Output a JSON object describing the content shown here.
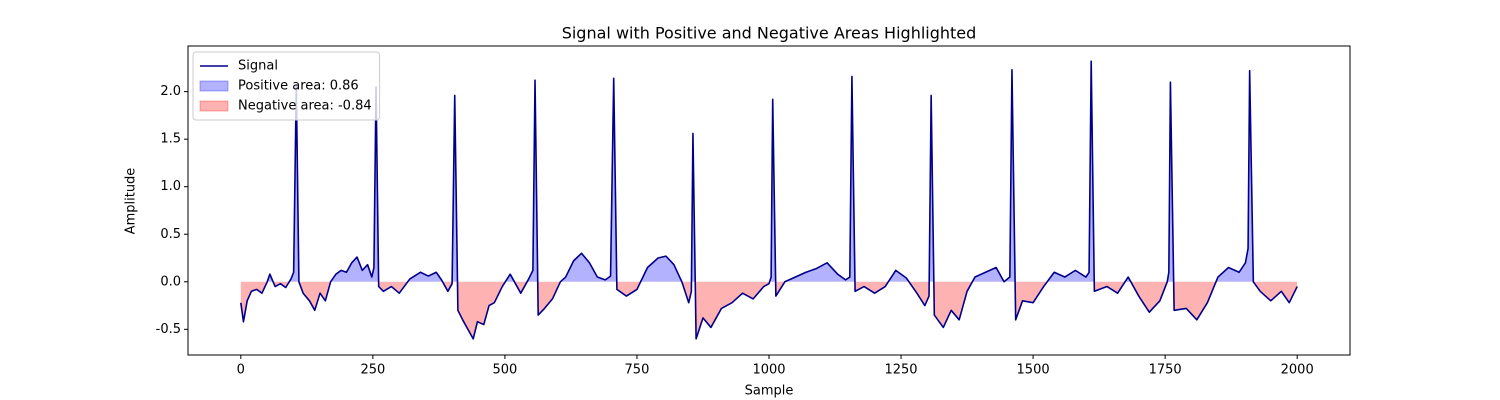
{
  "chart_data": {
    "type": "line",
    "title": "Signal with Positive and Negative Areas Highlighted",
    "x_label": "Sample",
    "y_label": "Amplitude",
    "xlim": [
      -100,
      2100
    ],
    "ylim": [
      -0.77,
      2.48
    ],
    "xticks": [
      0,
      250,
      500,
      750,
      1000,
      1250,
      1500,
      1750,
      2000
    ],
    "yticks": [
      -0.5,
      {
        "value": 0,
        "label": "0.0"
      },
      0.5,
      {
        "value": 1,
        "label": "1.0"
      },
      1.5,
      {
        "value": 2,
        "label": "2.0"
      }
    ],
    "legend": "upper left",
    "series": [
      {
        "name": "Signal",
        "color": "#00008b",
        "x": [
          0,
          5,
          12,
          20,
          30,
          40,
          50,
          55,
          65,
          75,
          85,
          95,
          100,
          105,
          110,
          118,
          130,
          140,
          150,
          160,
          170,
          180,
          190,
          200,
          210,
          220,
          230,
          240,
          248,
          252,
          256,
          261,
          270,
          285,
          300,
          320,
          340,
          355,
          370,
          380,
          392,
          400,
          405,
          411,
          420,
          430,
          440,
          448,
          460,
          470,
          480,
          495,
          510,
          530,
          545,
          553,
          557,
          563,
          575,
          590,
          605,
          615,
          630,
          645,
          660,
          675,
          690,
          700,
          706,
          712,
          730,
          750,
          770,
          790,
          805,
          820,
          835,
          848,
          853,
          856,
          862,
          875,
          890,
          910,
          930,
          950,
          970,
          990,
          1000,
          1004,
          1007,
          1013,
          1030,
          1050,
          1070,
          1090,
          1110,
          1130,
          1145,
          1153,
          1157,
          1163,
          1180,
          1200,
          1220,
          1240,
          1260,
          1280,
          1295,
          1303,
          1307,
          1313,
          1330,
          1345,
          1360,
          1375,
          1390,
          1410,
          1430,
          1445,
          1456,
          1460,
          1467,
          1480,
          1500,
          1520,
          1540,
          1560,
          1580,
          1600,
          1606,
          1610,
          1616,
          1640,
          1660,
          1680,
          1700,
          1720,
          1740,
          1754,
          1757,
          1760,
          1767,
          1790,
          1810,
          1830,
          1850,
          1870,
          1890,
          1902,
          1907,
          1910,
          1917,
          1930,
          1950,
          1970,
          1985,
          2000
        ],
        "values": [
          -0.22,
          -0.42,
          -0.2,
          -0.1,
          -0.08,
          -0.12,
          0.0,
          0.08,
          -0.05,
          -0.02,
          -0.06,
          0.03,
          0.1,
          2.07,
          0.0,
          -0.12,
          -0.2,
          -0.3,
          -0.12,
          -0.2,
          0.0,
          0.08,
          0.12,
          0.1,
          0.2,
          0.26,
          0.12,
          0.18,
          0.05,
          0.15,
          2.05,
          -0.05,
          -0.1,
          -0.05,
          -0.12,
          0.03,
          0.1,
          0.06,
          0.1,
          0.02,
          -0.1,
          -0.02,
          1.96,
          -0.3,
          -0.4,
          -0.5,
          -0.6,
          -0.42,
          -0.45,
          -0.25,
          -0.22,
          -0.05,
          0.08,
          -0.12,
          0.03,
          0.12,
          2.12,
          -0.35,
          -0.28,
          -0.18,
          0.0,
          0.05,
          0.22,
          0.3,
          0.2,
          0.05,
          0.02,
          0.06,
          2.14,
          -0.08,
          -0.15,
          -0.08,
          0.15,
          0.25,
          0.27,
          0.18,
          0.0,
          -0.22,
          -0.1,
          1.56,
          -0.6,
          -0.38,
          -0.48,
          -0.28,
          -0.22,
          -0.12,
          -0.18,
          -0.05,
          -0.02,
          0.05,
          1.92,
          -0.15,
          0.0,
          0.05,
          0.1,
          0.14,
          0.2,
          0.08,
          0.02,
          0.05,
          2.16,
          -0.1,
          -0.05,
          -0.12,
          -0.05,
          0.12,
          0.04,
          -0.12,
          -0.25,
          -0.15,
          1.96,
          -0.35,
          -0.48,
          -0.3,
          -0.4,
          -0.1,
          0.05,
          0.1,
          0.15,
          0.0,
          0.05,
          2.23,
          -0.4,
          -0.2,
          -0.22,
          -0.05,
          0.1,
          0.05,
          0.12,
          0.05,
          0.1,
          2.32,
          -0.1,
          -0.05,
          -0.12,
          0.05,
          -0.15,
          -0.32,
          -0.2,
          0.0,
          0.1,
          2.1,
          -0.3,
          -0.28,
          -0.4,
          -0.22,
          0.05,
          0.15,
          0.1,
          0.2,
          0.35,
          2.22,
          0.0,
          -0.1,
          -0.2,
          -0.1,
          -0.22,
          -0.05
        ]
      }
    ],
    "areas": [
      {
        "name": "Positive area: 0.86",
        "color": "#0000ff"
      },
      {
        "name": "Negative area: -0.84",
        "color": "#ff0000"
      }
    ]
  }
}
